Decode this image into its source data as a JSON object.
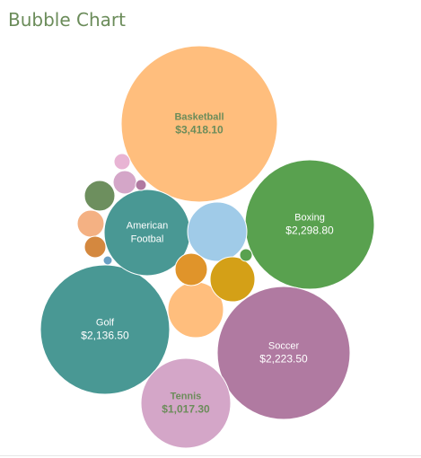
{
  "chart_data": {
    "type": "bubble",
    "title": "Bubble Chart",
    "value_unit": "USD",
    "bubbles": [
      {
        "label": "Basketball",
        "value_text": "$3,418.10",
        "value": 3418.1,
        "color": "#ffbe7d",
        "text_color": "#6b8c5a"
      },
      {
        "label": "Boxing",
        "value_text": "$2,298.80",
        "value": 2298.8,
        "color": "#59a14f",
        "text_color": "#ffffff"
      },
      {
        "label": "Soccer",
        "value_text": "$2,223.50",
        "value": 2223.5,
        "color": "#b07aa1",
        "text_color": "#ffffff"
      },
      {
        "label": "Golf",
        "value_text": "$2,136.50",
        "value": 2136.5,
        "color": "#499894",
        "text_color": "#ffffff"
      },
      {
        "label": "American\nFootbal",
        "value_text": "",
        "value": null,
        "color": "#499894",
        "text_color": "#ffffff"
      },
      {
        "label": "Tennis",
        "value_text": "$1,017.30",
        "value": 1017.3,
        "color": "#d4a6c8",
        "text_color": "#6b8c5a"
      },
      {
        "label": "",
        "value_text": "",
        "value": null,
        "color": "#a0cbe8",
        "text_color": ""
      },
      {
        "label": "",
        "value_text": "",
        "value": null,
        "color": "#ffbe7d",
        "text_color": ""
      },
      {
        "label": "",
        "value_text": "",
        "value": null,
        "color": "#d4a017",
        "text_color": ""
      },
      {
        "label": "",
        "value_text": "",
        "value": null,
        "color": "#e0942a",
        "text_color": ""
      },
      {
        "label": "",
        "value_text": "",
        "value": null,
        "color": "#6d8f5e",
        "text_color": ""
      },
      {
        "label": "",
        "value_text": "",
        "value": null,
        "color": "#f4b183",
        "text_color": ""
      },
      {
        "label": "",
        "value_text": "",
        "value": null,
        "color": "#d4883f",
        "text_color": ""
      },
      {
        "label": "",
        "value_text": "",
        "value": null,
        "color": "#d4a6c8",
        "text_color": ""
      },
      {
        "label": "",
        "value_text": "",
        "value": null,
        "color": "#e8b4d4",
        "text_color": ""
      },
      {
        "label": "",
        "value_text": "",
        "value": null,
        "color": "#b07aa1",
        "text_color": ""
      },
      {
        "label": "",
        "value_text": "",
        "value": null,
        "color": "#59a14f",
        "text_color": ""
      },
      {
        "label": "",
        "value_text": "",
        "value": null,
        "color": "#6aa0c4",
        "text_color": ""
      }
    ]
  }
}
